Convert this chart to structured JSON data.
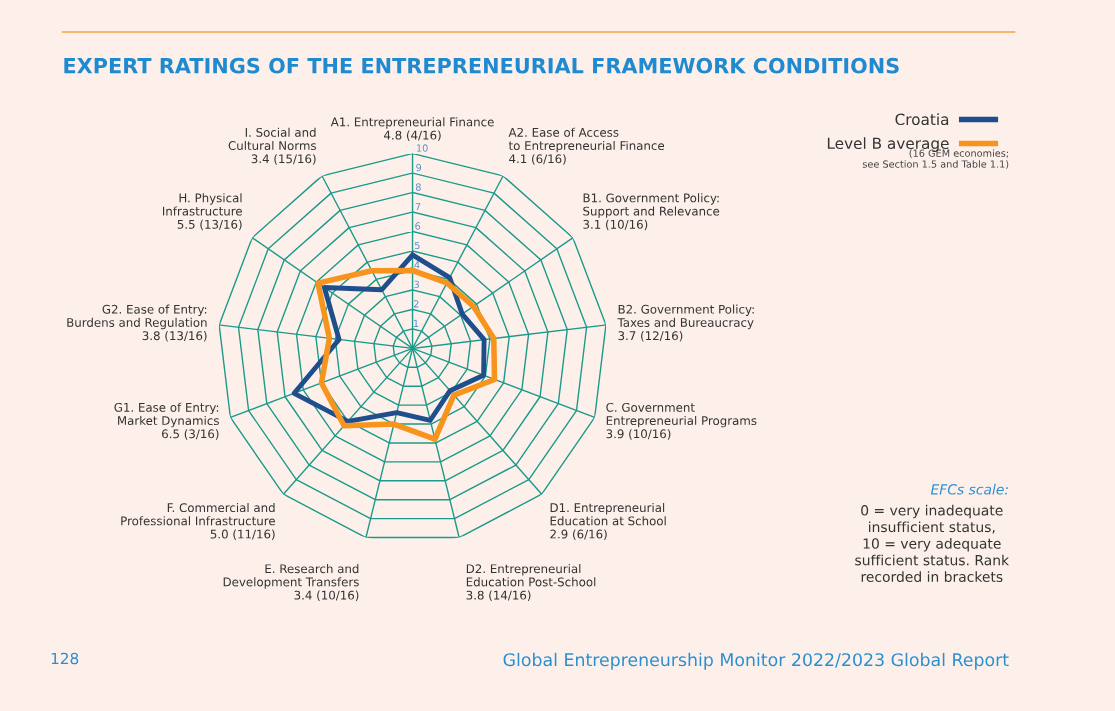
{
  "chart_data": {
    "type": "radar",
    "title": "EXPERT RATINGS OF THE ENTREPRENEURIAL FRAMEWORK CONDITIONS",
    "categories": [
      "A1. Entrepreneurial Finance\n4.8 (4/16)",
      "A2. Ease of Access\nto Entrepreneurial Finance\n4.1 (6/16)",
      "B1. Government Policy:\nSupport and Relevance\n3.1 (10/16)",
      "B2. Government Policy:\nTaxes and Bureaucracy\n3.7 (12/16)",
      "C. Government\nEntrepreneurial Programs\n3.9 (10/16)",
      "D1. Entrepreneurial\nEducation at School\n2.9 (6/16)",
      "D2. Entrepreneurial\nEducation Post-School\n3.8 (14/16)",
      "E. Research and\nDevelopment Transfers\n3.4 (10/16)",
      "F. Commercial and\nProfessional Infrastructure\n5.0 (11/16)",
      "G1. Ease of Entry:\nMarket Dynamics\n6.5 (3/16)",
      "G2. Ease of Entry:\nBurdens and Regulation\n3.8 (13/16)",
      "H. Physical\nInfrastructure\n5.5 (13/16)",
      "I. Social and\nCultural Norms\n3.4 (15/16)"
    ],
    "series": [
      {
        "name": "Croatia",
        "color": "#1f4e8c",
        "values": [
          4.8,
          4.1,
          3.1,
          3.7,
          3.9,
          2.9,
          3.8,
          3.4,
          5.0,
          6.5,
          3.8,
          5.5,
          3.4
        ]
      },
      {
        "name": "Level B average",
        "color": "#f7941d",
        "values": [
          4.0,
          3.8,
          3.8,
          4.2,
          4.5,
          3.2,
          4.8,
          4.0,
          5.3,
          5.0,
          4.3,
          5.9,
          4.5
        ]
      }
    ],
    "ylim": [
      0,
      10
    ],
    "yticks": [
      1,
      2,
      3,
      4,
      5,
      6,
      7,
      8,
      9,
      10
    ],
    "grid": true,
    "legend": "top right",
    "marker": "none",
    "line_style": "solid",
    "annotations": [
      "(16 GEM economies;\nsee Section 1.5 and Table 1.1)",
      "EFCs scale:",
      "0 = very inadequate\ninsufficient status,\n10 = very adequate\nsufficient status. Rank\nrecorded in brackets",
      "128",
      "Global Entrepreneurship Monitor 2022/2023 Global Report"
    ]
  }
}
